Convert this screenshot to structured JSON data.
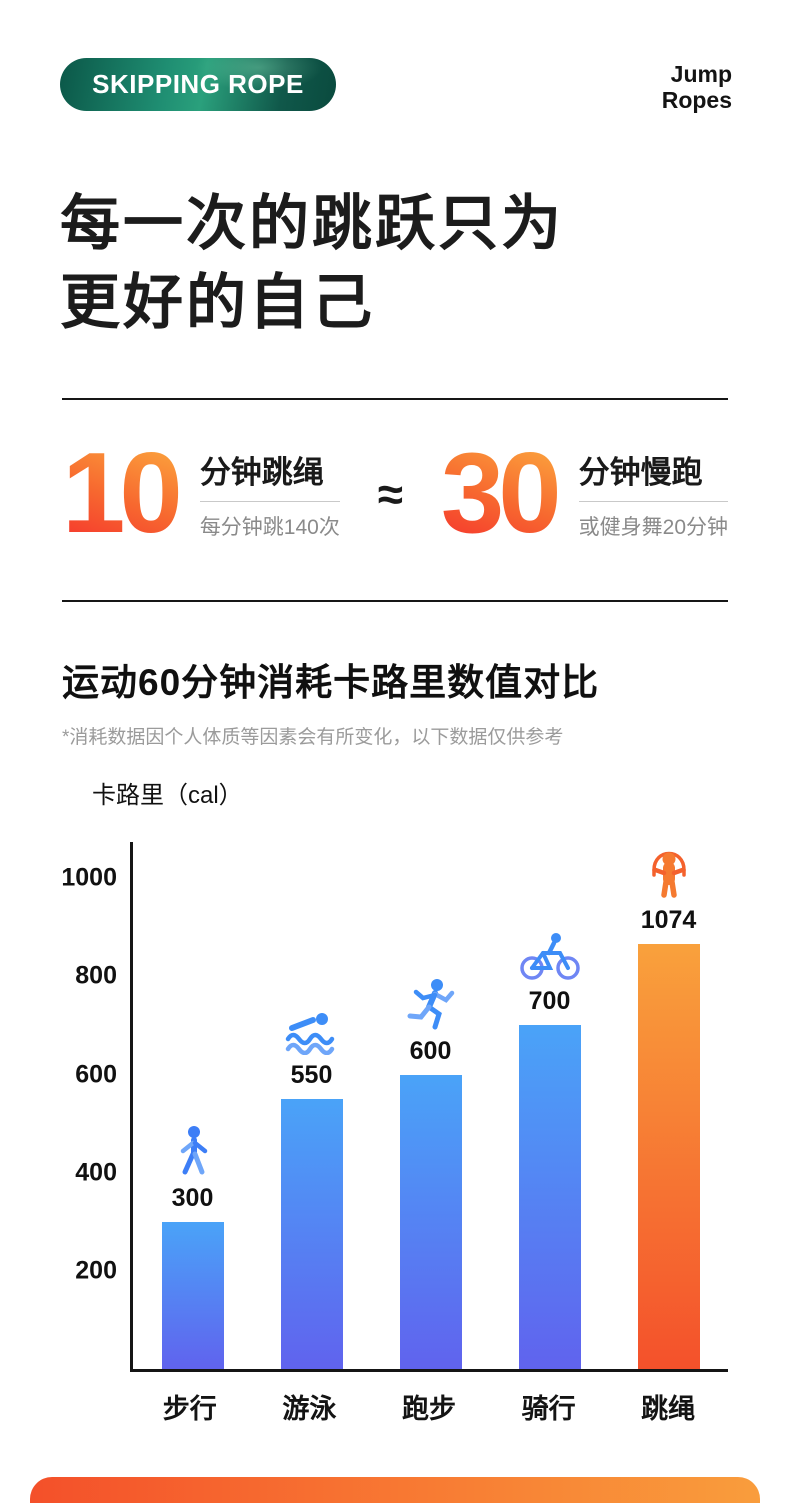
{
  "header": {
    "badge": "SKIPPING ROPE",
    "brand_line1": "Jump",
    "brand_line2": "Ropes"
  },
  "hero": {
    "title_line1": "每一次的跳跃只为",
    "title_line2": "更好的自己"
  },
  "stats": {
    "approx_symbol": "≈",
    "items": [
      {
        "number": "10",
        "title": "分钟跳绳",
        "subtitle": "每分钟跳140次"
      },
      {
        "number": "30",
        "title": "分钟慢跑",
        "subtitle": "或健身舞20分钟"
      }
    ]
  },
  "comparison": {
    "title": "运动60分钟消耗卡路里数值对比",
    "footnote": "*消耗数据因个人体质等因素会有所变化，以下数据仅供参考",
    "unit_label": "卡路里（cal）"
  },
  "chart_data": {
    "type": "bar",
    "title": "运动60分钟消耗卡路里数值对比",
    "ylabel": "卡路里（cal）",
    "categories": [
      "步行",
      "游泳",
      "跑步",
      "骑行",
      "跳绳"
    ],
    "values": [
      300,
      550,
      600,
      700,
      1074
    ],
    "icons": [
      "walk-icon",
      "swim-icon",
      "run-icon",
      "bike-icon",
      "jumprope-icon"
    ],
    "yticks": [
      200,
      400,
      600,
      800,
      1000
    ],
    "ylim": [
      0,
      1080
    ],
    "highlight_index": 4,
    "legend": "none",
    "grid": false
  },
  "colors": {
    "accent_red": "#f53a2e",
    "accent_orange": "#fba03c",
    "badge_green": "#1f8e72",
    "bar_blue_top": "#4aa3f8",
    "bar_blue_bottom": "#6063ee",
    "bar_orange_top": "#f9a13c",
    "bar_orange_bottom": "#f4512b",
    "footer_left": "#f4502a",
    "footer_right": "#f99d3c"
  }
}
